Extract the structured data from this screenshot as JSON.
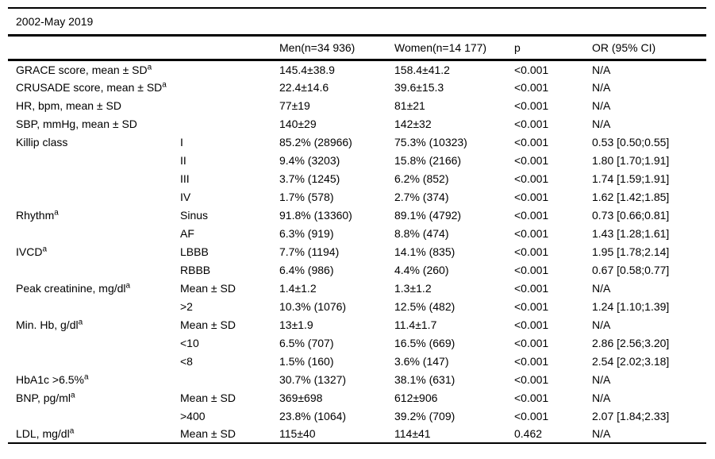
{
  "table": {
    "title": "2002-May 2019",
    "columns": [
      "",
      "",
      "Men(n=34 936)",
      "Women(n=14 177)",
      "p",
      "OR (95% CI)"
    ],
    "rows": [
      {
        "label": "GRACE score, mean ± SD",
        "sup": "a",
        "sub": "",
        "men": "145.4±38.9",
        "women": "158.4±41.2",
        "p": "<0.001",
        "or": "N/A"
      },
      {
        "label": "CRUSADE score, mean ± SD",
        "sup": "a",
        "sub": "",
        "men": "22.4±14.6",
        "women": "39.6±15.3",
        "p": "<0.001",
        "or": "N/A"
      },
      {
        "label": "HR, bpm, mean ± SD",
        "sup": "",
        "sub": "",
        "men": "77±19",
        "women": "81±21",
        "p": "<0.001",
        "or": "N/A"
      },
      {
        "label": "SBP, mmHg, mean ± SD",
        "sup": "",
        "sub": "",
        "men": "140±29",
        "women": "142±32",
        "p": "<0.001",
        "or": "N/A"
      },
      {
        "label": "Killip class",
        "sup": "",
        "sub": "I",
        "men": "85.2% (28966)",
        "women": "75.3% (10323)",
        "p": "<0.001",
        "or": "0.53 [0.50;0.55]"
      },
      {
        "label": "",
        "sup": "",
        "sub": "II",
        "men": "9.4% (3203)",
        "women": "15.8% (2166)",
        "p": "<0.001",
        "or": "1.80 [1.70;1.91]"
      },
      {
        "label": "",
        "sup": "",
        "sub": "III",
        "men": "3.7% (1245)",
        "women": "6.2% (852)",
        "p": "<0.001",
        "or": "1.74 [1.59;1.91]"
      },
      {
        "label": "",
        "sup": "",
        "sub": "IV",
        "men": "1.7% (578)",
        "women": "2.7% (374)",
        "p": "<0.001",
        "or": "1.62 [1.42;1.85]"
      },
      {
        "label": "Rhythm",
        "sup": "a",
        "sub": "Sinus",
        "men": "91.8% (13360)",
        "women": "89.1% (4792)",
        "p": "<0.001",
        "or": "0.73 [0.66;0.81]"
      },
      {
        "label": "",
        "sup": "",
        "sub": "AF",
        "men": "6.3% (919)",
        "women": "8.8% (474)",
        "p": "<0.001",
        "or": "1.43 [1.28;1.61]"
      },
      {
        "label": "IVCD",
        "sup": "a",
        "sub": "LBBB",
        "men": "7.7% (1194)",
        "women": "14.1% (835)",
        "p": "<0.001",
        "or": "1.95 [1.78;2.14]"
      },
      {
        "label": "",
        "sup": "",
        "sub": "RBBB",
        "men": "6.4% (986)",
        "women": "4.4% (260)",
        "p": "<0.001",
        "or": "0.67 [0.58;0.77]"
      },
      {
        "label": "Peak creatinine, mg/dl",
        "sup": "a",
        "sub": "Mean ± SD",
        "men": "1.4±1.2",
        "women": "1.3±1.2",
        "p": "<0.001",
        "or": "N/A"
      },
      {
        "label": "",
        "sup": "",
        "sub": ">2",
        "men": "10.3% (1076)",
        "women": "12.5% (482)",
        "p": "<0.001",
        "or": "1.24 [1.10;1.39]"
      },
      {
        "label": "Min. Hb, g/dl",
        "sup": "a",
        "sub": "Mean ± SD",
        "men": "13±1.9",
        "women": "11.4±1.7",
        "p": "<0.001",
        "or": "N/A"
      },
      {
        "label": "",
        "sup": "",
        "sub": "<10",
        "men": "6.5% (707)",
        "women": "16.5% (669)",
        "p": "<0.001",
        "or": "2.86 [2.56;3.20]"
      },
      {
        "label": "",
        "sup": "",
        "sub": "<8",
        "men": "1.5% (160)",
        "women": "3.6% (147)",
        "p": "<0.001",
        "or": "2.54 [2.02;3.18]"
      },
      {
        "label": "HbA1c >6.5%",
        "sup": "a",
        "sub": "",
        "men": "30.7% (1327)",
        "women": "38.1% (631)",
        "p": "<0.001",
        "or": "N/A"
      },
      {
        "label": "BNP, pg/ml",
        "sup": "a",
        "sub": "Mean ± SD",
        "men": "369±698",
        "women": "612±906",
        "p": "<0.001",
        "or": "N/A"
      },
      {
        "label": "",
        "sup": "",
        "sub": ">400",
        "men": "23.8% (1064)",
        "women": "39.2% (709)",
        "p": "<0.001",
        "or": "2.07 [1.84;2.33]"
      },
      {
        "label": "LDL, mg/dl",
        "sup": "a",
        "sub": "Mean ± SD",
        "men": "115±40",
        "women": "114±41",
        "p": "0.462",
        "or": "N/A"
      }
    ]
  }
}
